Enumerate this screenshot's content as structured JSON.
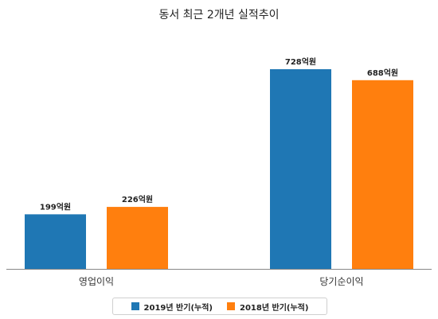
{
  "title": "동서 최근 2개년 실적추이",
  "colors": {
    "series_2019": "#1f77b4",
    "series_2018": "#ff7f0e",
    "axis": "#888888"
  },
  "chart_data": {
    "type": "bar",
    "title": "동서 최근 2개년 실적추이",
    "categories": [
      "영업이익",
      "당기순이익"
    ],
    "series": [
      {
        "name": "2019년 반기(누적)",
        "values": [
          199,
          728
        ],
        "labels": [
          "199억원",
          "728억원"
        ]
      },
      {
        "name": "2018년 반기(누적)",
        "values": [
          226,
          688
        ],
        "labels": [
          "226억원",
          "688억원"
        ]
      }
    ],
    "ylim": [
      0,
      800
    ],
    "grid": false,
    "legend": "bottom"
  }
}
